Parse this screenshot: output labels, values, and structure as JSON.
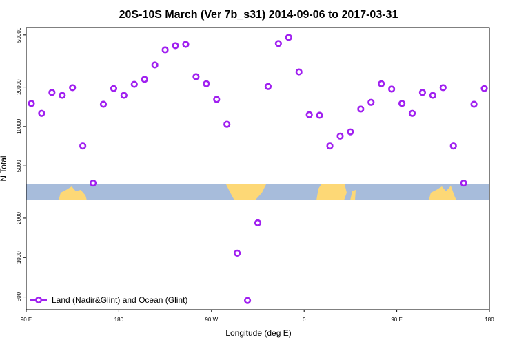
{
  "chart_data": {
    "type": "scatter",
    "title": "20S-10S March (Ver 7b_s31)   2014-09-06 to 2017-03-31",
    "x_label": "Longitude (deg E)",
    "y_label": "N Total",
    "log_y": true,
    "legend_position": "bottom-left",
    "xlim": [
      90,
      540
    ],
    "xticks": [
      {
        "value": 90,
        "label": "90 E"
      },
      180,
      {
        "value": 270,
        "label": "90 W"
      },
      {
        "value": 360,
        "label": "0"
      },
      {
        "value": 450,
        "label": "90 E"
      },
      {
        "value": 540,
        "label": "180"
      }
    ],
    "ylim": [
      400,
      57000
    ],
    "yticks": [
      500,
      1000,
      2000,
      5000,
      10000,
      20000,
      50000
    ],
    "series": [
      {
        "name": "Land (Nadir&Glint) and Ocean (Glint)",
        "color": "#a020f0",
        "x": [
          95,
          105,
          115,
          125,
          135,
          145,
          155,
          165,
          175,
          185,
          195,
          205,
          215,
          225,
          235,
          245,
          255,
          265,
          275,
          285,
          295,
          305,
          315,
          325,
          335,
          345,
          355,
          365,
          375,
          385,
          395,
          405,
          415,
          425,
          435,
          445,
          455,
          465,
          475,
          485,
          495,
          505,
          515,
          525,
          535
        ],
        "values": [
          15000,
          12600,
          18200,
          17300,
          19800,
          7100,
          3700,
          14800,
          19500,
          17300,
          21000,
          22900,
          29500,
          38500,
          41400,
          42400,
          24000,
          21200,
          16100,
          10400,
          1080,
          470,
          1840,
          20200,
          43000,
          47900,
          26100,
          12300,
          12200,
          7100,
          8450,
          9100,
          13600,
          15300,
          21200,
          19300,
          15000,
          12600,
          18200,
          17300,
          19800,
          7100,
          3700,
          14800,
          19500
        ]
      }
    ]
  }
}
